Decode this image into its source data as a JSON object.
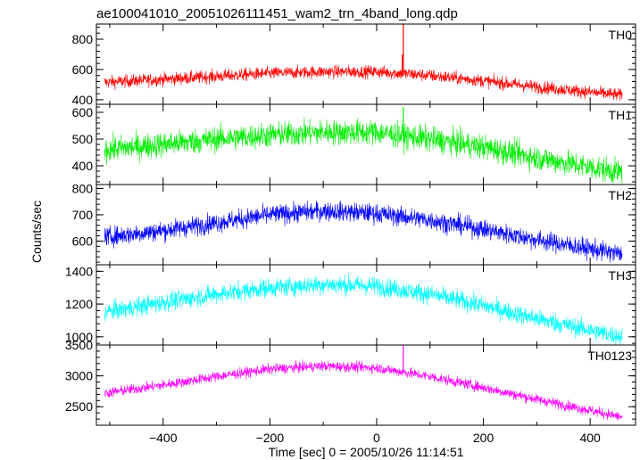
{
  "chart_data": {
    "type": "line",
    "title": "ae100041010_20051026111451_wam2_trn_4band_long.qdp",
    "xlabel": "Time [sec] 0 = 2005/10/26 11:14:51",
    "ylabel": "Counts/sec",
    "xlim": [
      -525,
      485
    ],
    "xticks": [
      -400,
      -200,
      0,
      200,
      400
    ],
    "x_range": [
      -510,
      460
    ],
    "grid": false,
    "panels": [
      {
        "name": "TH0",
        "color": "#ff0000",
        "ylim": [
          370,
          900
        ],
        "yticks": [
          400,
          600,
          800
        ],
        "profile": {
          "x": [
            -510,
            -400,
            -300,
            -200,
            -100,
            0,
            100,
            200,
            300,
            400,
            460
          ],
          "y": [
            515,
            535,
            555,
            575,
            585,
            585,
            560,
            525,
            485,
            450,
            430
          ]
        },
        "noise": 40,
        "spikes": [
          {
            "x": 50,
            "y": 900
          },
          {
            "x": 48,
            "y": 700
          }
        ]
      },
      {
        "name": "TH1",
        "color": "#00ee00",
        "ylim": [
          330,
          630
        ],
        "yticks": [
          400,
          500,
          600
        ],
        "profile": {
          "x": [
            -510,
            -400,
            -300,
            -200,
            -100,
            0,
            100,
            200,
            300,
            400,
            460
          ],
          "y": [
            460,
            480,
            500,
            515,
            525,
            525,
            500,
            470,
            430,
            395,
            375
          ]
        },
        "noise": 45,
        "spikes": [
          {
            "x": 50,
            "y": 620
          }
        ]
      },
      {
        "name": "TH2",
        "color": "#0000ff",
        "ylim": [
          510,
          815
        ],
        "yticks": [
          600,
          700,
          800
        ],
        "profile": {
          "x": [
            -510,
            -400,
            -300,
            -200,
            -100,
            0,
            100,
            200,
            300,
            400,
            460
          ],
          "y": [
            615,
            640,
            670,
            700,
            715,
            705,
            680,
            645,
            605,
            570,
            550
          ]
        },
        "noise": 35,
        "spikes": []
      },
      {
        "name": "TH3",
        "color": "#00ffff",
        "ylim": [
          950,
          1440
        ],
        "yticks": [
          1000,
          1200,
          1400
        ],
        "profile": {
          "x": [
            -510,
            -400,
            -300,
            -200,
            -100,
            0,
            100,
            200,
            300,
            400,
            460
          ],
          "y": [
            1150,
            1210,
            1260,
            1300,
            1320,
            1310,
            1260,
            1190,
            1110,
            1040,
            1000
          ]
        },
        "noise": 55,
        "spikes": []
      },
      {
        "name": "TH0123",
        "color": "#ff00ff",
        "ylim": [
          2200,
          3500
        ],
        "yticks": [
          2500,
          3000,
          3500
        ],
        "profile": {
          "x": [
            -510,
            -400,
            -300,
            -200,
            -100,
            0,
            100,
            200,
            300,
            400,
            460
          ],
          "y": [
            2720,
            2850,
            2990,
            3110,
            3160,
            3130,
            2990,
            2810,
            2620,
            2440,
            2330
          ]
        },
        "noise": 80,
        "spikes": [
          {
            "x": 50,
            "y": 3500
          }
        ]
      }
    ]
  }
}
